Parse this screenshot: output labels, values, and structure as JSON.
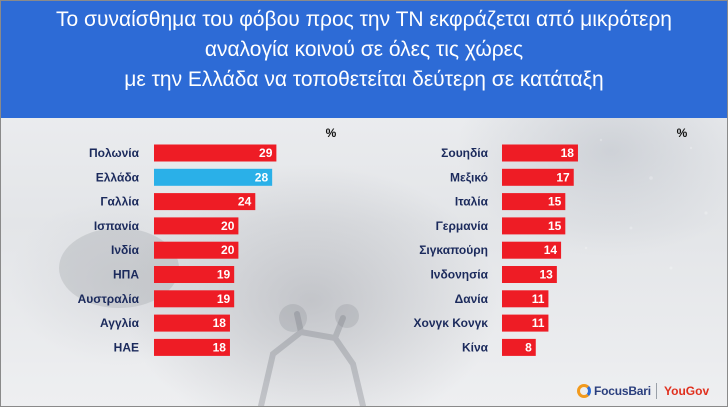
{
  "title": {
    "line1": "Το συναίσθημα του φόβου προς την ΤΝ εκφράζεται από μικρότερη",
    "line2": "αναλογία κοινού  σε όλες τις χώρες",
    "line3": "με την Ελλάδα να τοποθετείται δεύτερη σε κατάταξη"
  },
  "chart_data": [
    {
      "type": "bar",
      "orientation": "horizontal",
      "unit": "%",
      "categories": [
        "Πολωνία",
        "Ελλάδα",
        "Γαλλία",
        "Ισπανία",
        "Ινδία",
        "ΗΠΑ",
        "Αυστραλία",
        "Αγγλία",
        "ΗΑΕ"
      ],
      "values": [
        29,
        28,
        24,
        20,
        20,
        19,
        19,
        18,
        18
      ],
      "highlight": "Ελλάδα",
      "xlim": [
        0,
        30
      ]
    },
    {
      "type": "bar",
      "orientation": "horizontal",
      "unit": "%",
      "categories": [
        "Σουηδία",
        "Μεξικό",
        "Ιταλία",
        "Γερμανία",
        "Σιγκαπούρη",
        "Ινδονησία",
        "Δανία",
        "Χονγκ Κονγκ",
        "Κίνα"
      ],
      "values": [
        18,
        17,
        15,
        15,
        14,
        13,
        11,
        11,
        8
      ],
      "highlight": null,
      "xlim": [
        0,
        30
      ]
    }
  ],
  "colors": {
    "bar": "#ee1c25",
    "highlight_bar": "#2ab0e8",
    "header": "#2d6bd6"
  },
  "logos": {
    "focus": "FocusBari",
    "yougov": "YouGov"
  }
}
